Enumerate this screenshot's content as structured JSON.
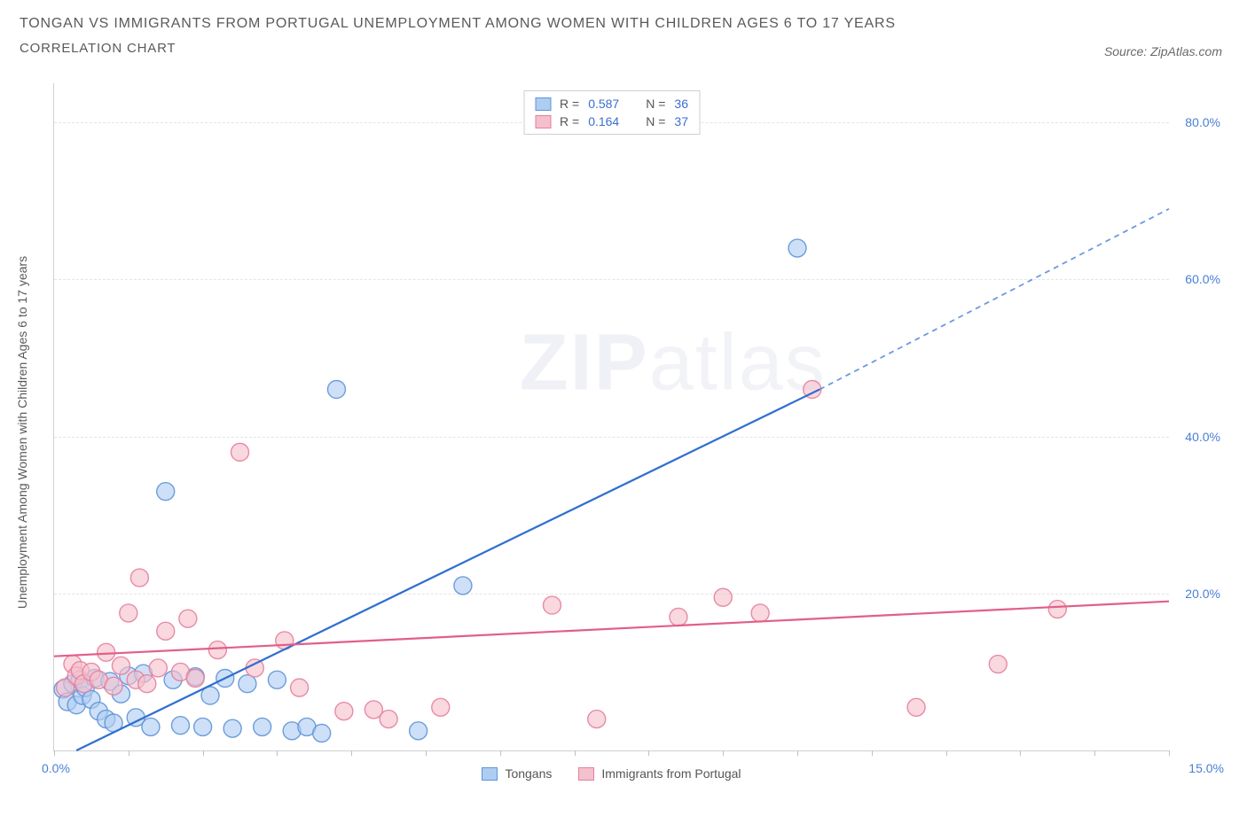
{
  "title_line1": "TONGAN VS IMMIGRANTS FROM PORTUGAL UNEMPLOYMENT AMONG WOMEN WITH CHILDREN AGES 6 TO 17 YEARS",
  "title_line2": "CORRELATION CHART",
  "source_prefix": "Source: ",
  "source_name": "ZipAtlas.com",
  "y_axis_label": "Unemployment Among Women with Children Ages 6 to 17 years",
  "watermark_bold": "ZIP",
  "watermark_light": "atlas",
  "chart": {
    "type": "scatter",
    "xlim": [
      0,
      15
    ],
    "ylim": [
      0,
      85
    ],
    "x_tick_positions": [
      0,
      1,
      2,
      3,
      4,
      5,
      6,
      7,
      8,
      9,
      10,
      11,
      12,
      13,
      14,
      15
    ],
    "x_tick_labels": {
      "0": "0.0%",
      "15": "15.0%"
    },
    "y_gridlines": [
      20,
      40,
      60,
      80
    ],
    "y_tick_labels": {
      "20": "20.0%",
      "40": "40.0%",
      "60": "60.0%",
      "80": "80.0%"
    },
    "background_color": "#ffffff",
    "grid_color": "#e4e4e4",
    "axis_color": "#d0d0d0",
    "tick_label_color": "#4a7fd6",
    "marker_radius": 10,
    "marker_opacity": 0.62,
    "series": [
      {
        "name": "Tongans",
        "fill": "#aecdf2",
        "stroke": "#5f94d8",
        "trend_color": "#2f6fd0",
        "trend": {
          "x1": 0.3,
          "y1": 0,
          "x2": 10.3,
          "y2": 46,
          "x2_dash": 15.0,
          "y2_dash": 69
        },
        "R": "0.587",
        "N": "36",
        "points": [
          [
            0.12,
            7.8
          ],
          [
            0.18,
            6.2
          ],
          [
            0.25,
            8.5
          ],
          [
            0.3,
            5.8
          ],
          [
            0.35,
            9.0
          ],
          [
            0.38,
            7.0
          ],
          [
            0.42,
            8.0
          ],
          [
            0.5,
            6.5
          ],
          [
            0.55,
            9.2
          ],
          [
            0.6,
            5.0
          ],
          [
            0.7,
            4.0
          ],
          [
            0.75,
            8.8
          ],
          [
            0.8,
            3.5
          ],
          [
            0.9,
            7.2
          ],
          [
            1.0,
            9.5
          ],
          [
            1.1,
            4.2
          ],
          [
            1.2,
            9.8
          ],
          [
            1.3,
            3.0
          ],
          [
            1.5,
            33.0
          ],
          [
            1.6,
            9.0
          ],
          [
            1.7,
            3.2
          ],
          [
            1.9,
            9.4
          ],
          [
            2.0,
            3.0
          ],
          [
            2.1,
            7.0
          ],
          [
            2.3,
            9.2
          ],
          [
            2.4,
            2.8
          ],
          [
            2.6,
            8.5
          ],
          [
            2.8,
            3.0
          ],
          [
            3.0,
            9.0
          ],
          [
            3.2,
            2.5
          ],
          [
            3.4,
            3.0
          ],
          [
            3.6,
            2.2
          ],
          [
            3.8,
            46.0
          ],
          [
            4.9,
            2.5
          ],
          [
            5.5,
            21.0
          ],
          [
            10.0,
            64.0
          ]
        ]
      },
      {
        "name": "Immigants from Portugal",
        "legend_label": "Immigrants from Portugal",
        "fill": "#f5c0cd",
        "stroke": "#e57f9c",
        "trend_color": "#e15f88",
        "trend": {
          "x1": 0,
          "y1": 12,
          "x2": 15.0,
          "y2": 19
        },
        "R": "0.164",
        "N": "37",
        "points": [
          [
            0.15,
            8.0
          ],
          [
            0.25,
            11.0
          ],
          [
            0.3,
            9.5
          ],
          [
            0.35,
            10.2
          ],
          [
            0.4,
            8.5
          ],
          [
            0.5,
            10.0
          ],
          [
            0.6,
            9.0
          ],
          [
            0.7,
            12.5
          ],
          [
            0.8,
            8.2
          ],
          [
            0.9,
            10.8
          ],
          [
            1.0,
            17.5
          ],
          [
            1.1,
            9.0
          ],
          [
            1.15,
            22.0
          ],
          [
            1.25,
            8.5
          ],
          [
            1.4,
            10.5
          ],
          [
            1.5,
            15.2
          ],
          [
            1.7,
            10.0
          ],
          [
            1.8,
            16.8
          ],
          [
            1.9,
            9.2
          ],
          [
            2.2,
            12.8
          ],
          [
            2.5,
            38.0
          ],
          [
            2.7,
            10.5
          ],
          [
            3.1,
            14.0
          ],
          [
            3.3,
            8.0
          ],
          [
            3.9,
            5.0
          ],
          [
            4.3,
            5.2
          ],
          [
            4.5,
            4.0
          ],
          [
            5.2,
            5.5
          ],
          [
            6.7,
            18.5
          ],
          [
            7.3,
            4.0
          ],
          [
            8.4,
            17.0
          ],
          [
            9.0,
            19.5
          ],
          [
            9.5,
            17.5
          ],
          [
            10.2,
            46.0
          ],
          [
            11.6,
            5.5
          ],
          [
            12.7,
            11.0
          ],
          [
            13.5,
            18.0
          ]
        ]
      }
    ]
  },
  "stats_box": {
    "R_label": "R =",
    "N_label": "N ="
  }
}
